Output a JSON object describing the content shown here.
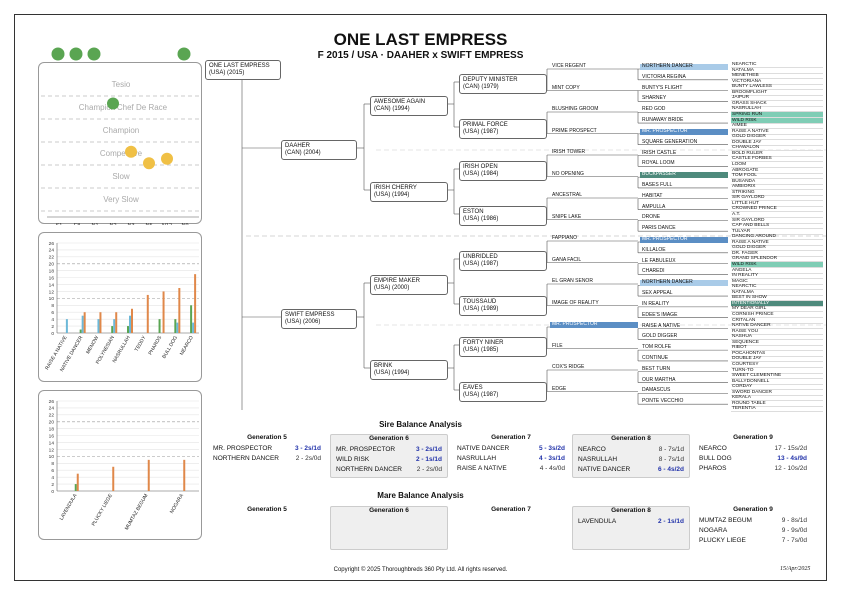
{
  "header": {
    "title": "ONE LAST EMPRESS",
    "subtitle": "F 2015 / USA · DAAHER x SWIFT EMPRESS"
  },
  "rating_panel": {
    "levels": [
      "Tesio",
      "Champion",
      "Chef De Race",
      "Champion",
      "Competitive",
      "Slow",
      "Very Slow"
    ],
    "columns": [
      "S1",
      "E8",
      "N1",
      "N2",
      "N3",
      "N5",
      "N12",
      "N9"
    ],
    "top_dots": [
      {
        "col": 0,
        "color": "#5aa552"
      },
      {
        "col": 1,
        "color": "#5aa552"
      },
      {
        "col": 2,
        "color": "#5aa552"
      },
      {
        "col": 7,
        "color": "#5aa552"
      }
    ],
    "dots": [
      {
        "col": 3,
        "level": 1.5,
        "color": "#5aa552"
      },
      {
        "col": 4,
        "level": 3.6,
        "color": "#f0c045"
      },
      {
        "col": 5,
        "level": 4.1,
        "color": "#f0c045"
      },
      {
        "col": 6,
        "level": 3.9,
        "color": "#f0c045"
      }
    ]
  },
  "chart_data": [
    {
      "type": "bar",
      "categories": [
        "RAISE A NATIVE",
        "NATIVE DANCER",
        "MENOW",
        "POLYNESIAN",
        "NASRULLAH",
        "TEDDY",
        "PHAROS",
        "BULL DOG",
        "NEARCO"
      ],
      "ylim": [
        0,
        26
      ],
      "yticks": [
        0,
        2,
        4,
        6,
        8,
        10,
        12,
        14,
        16,
        18,
        20,
        22,
        24,
        26
      ],
      "series": [
        {
          "color": "#5aa552",
          "values": [
            0,
            1,
            0,
            2,
            2,
            0,
            4,
            4,
            8
          ]
        },
        {
          "color": "#6cb8d8",
          "values": [
            4,
            5,
            4,
            4,
            5,
            0,
            0,
            3,
            3
          ]
        },
        {
          "color": "#e0884a",
          "values": [
            0,
            6,
            6,
            6,
            7,
            11,
            12,
            13,
            17
          ]
        }
      ]
    },
    {
      "type": "bar",
      "categories": [
        "LAVENDULA",
        "PLUCKY LIEGE",
        "MUMTAZ BEGUM",
        "NOGARA"
      ],
      "ylim": [
        0,
        26
      ],
      "yticks": [
        0,
        2,
        4,
        6,
        8,
        10,
        12,
        14,
        16,
        18,
        20,
        22,
        24,
        26
      ],
      "series": [
        {
          "color": "#5aa552",
          "values": [
            2,
            0,
            0,
            0
          ]
        },
        {
          "color": "#e0884a",
          "values": [
            5,
            7,
            9,
            9
          ]
        }
      ]
    }
  ],
  "pedigree": {
    "subject": {
      "name": "ONE LAST EMPRESS",
      "info": "(USA) (2015)"
    },
    "g1": [
      {
        "name": "DAAHER",
        "info": "(CAN) (2004)"
      },
      {
        "name": "SWIFT EMPRESS",
        "info": "(USA) (2006)"
      }
    ],
    "g2": [
      {
        "name": "AWESOME AGAIN",
        "info": "(CAN) (1994)"
      },
      {
        "name": "IRISH CHERRY",
        "info": "(USA) (1994)"
      },
      {
        "name": "EMPIRE MAKER",
        "info": "(USA) (2000)"
      },
      {
        "name": "BRINK",
        "info": "(USA) (1994)"
      }
    ],
    "g3": [
      {
        "name": "DEPUTY MINISTER",
        "info": "(CAN) (1979)"
      },
      {
        "name": "PRIMAL FORCE",
        "info": "(USA) (1987)"
      },
      {
        "name": "IRISH OPEN",
        "info": "(USA) (1984)"
      },
      {
        "name": "ESTON",
        "info": "(USA) (1986)"
      },
      {
        "name": "UNBRIDLED",
        "info": "(USA) (1987)"
      },
      {
        "name": "TOUSSAUD",
        "info": "(USA) (1989)"
      },
      {
        "name": "FORTY NINER",
        "info": "(USA) (1985)"
      },
      {
        "name": "EAVES",
        "info": "(USA) (1987)"
      }
    ],
    "g4": [
      "VICE REGENT",
      "MINT COPY",
      "BLUSHING GROOM",
      "PRIME PROSPECT",
      "IRISH TOWER",
      "NO OPENING",
      "ANCESTRAL",
      "SNIPE LAKE",
      "FAPPIANO",
      "GANA FACIL",
      "EL GRAN SENOR",
      "IMAGE OF REALITY",
      "MR. PROSPECTOR",
      "FILE",
      "COX'S RIDGE",
      "EDGE"
    ],
    "g5": [
      "NORTHERN DANCER",
      "VICTORIA REGINA",
      "BUNTY'S FLIGHT",
      "SHARNEY",
      "RED GOD",
      "RUNAWAY BRIDE",
      "MR. PROSPECTOR",
      "SQUARE GENERATION",
      "IRISH CASTLE",
      "ROYAL LOOM",
      "BUCKPASSER",
      "BASES FULL",
      "HABITAT",
      "AMPULLA",
      "DRONE",
      "PARIS DANCE",
      "MR. PROSPECTOR",
      "KILLALOE",
      "LE FABULEUX",
      "CHAREDI",
      "NORTHERN DANCER",
      "SEX APPEAL",
      "IN REALITY",
      "EDEE'S IMAGE",
      "RAISE A NATIVE",
      "GOLD DIGGER",
      "TOM ROLFE",
      "CONTINUE",
      "BEST TURN",
      "OUR MARTHA",
      "DAMASCUS",
      "PONTE VECCHIO"
    ],
    "g5_highlight": [
      "blue",
      "",
      "",
      "",
      "",
      "",
      "dblue",
      "",
      "",
      "",
      "dteal",
      "",
      "",
      "",
      "",
      "",
      "dblue",
      "",
      "",
      "",
      "blue",
      "",
      "",
      "",
      "",
      "",
      "",
      "",
      "",
      "",
      "",
      ""
    ],
    "g4_highlight": [
      "",
      "",
      "",
      "",
      "",
      "",
      "",
      "",
      "",
      "",
      "",
      "",
      "dblue",
      "",
      "",
      ""
    ],
    "g6": [
      "NEARCTIC",
      "NATALMA",
      "MENETHEB",
      "VICTORIANA",
      "BUNTY LAWLESS",
      "BROOMFLIGHT",
      "JAIPUR",
      "GRASS SHACK",
      "NASRULLAH",
      "SPRING RUN",
      "WILD RISK",
      "AIMEE",
      "RAISE A NATIVE",
      "GOLD DIGGER",
      "DOUBLE JAY",
      "CHAWALON",
      "BOLD RULER",
      "CASTLE FORBES",
      "LOOM",
      "ABROGATE",
      "TOM FOOL",
      "BUSANDA",
      "AMBIORIX",
      "STRIKING",
      "SIR GAYLORD",
      "LITTLE HUT",
      "CROWNED PRINCE",
      "A.T.",
      "SIR GAYLORD",
      "CAP AND BELLS",
      "TULYAR",
      "DANCING AROUND",
      "RAISE A NATIVE",
      "GOLD DIGGER",
      "DR. FAGER",
      "GRAND SPLENDOR",
      "WILD RISK",
      "ANGELA",
      "IN REALITY",
      "MAGIC",
      "NEARCTIC",
      "NATALMA",
      "BEST IN SHOW",
      "INTENTIONALLY",
      "MY DEAR GIRL",
      "CORNISH PRINCE",
      "CRITALAN",
      "NATIVE DANCER",
      "RAISE YOU",
      "NASHUA",
      "SEQUENCE",
      "RIBOT",
      "POCAHONTAS",
      "DOUBLE JAY",
      "COURTESY",
      "TURN-TO",
      "SWEET CLEMENTINE",
      "BALLYDONNELL",
      "CORDAY",
      "SWORD DANCER",
      "KERALA",
      "ROUND TABLE",
      "TERENTIA"
    ],
    "g6_highlight": {
      "9": "teal",
      "10": "teal",
      "36": "teal",
      "43": "dteal"
    }
  },
  "sire_balance": {
    "title": "Sire Balance Analysis",
    "generations": [
      {
        "label": "Generation 5",
        "shaded": false,
        "rows": [
          {
            "name": "MR. PROSPECTOR",
            "value": "3 - 2s/1d",
            "blue": true
          },
          {
            "name": "NORTHERN DANCER",
            "value": "2 - 2s/0d",
            "blue": false
          }
        ]
      },
      {
        "label": "Generation 6",
        "shaded": true,
        "rows": [
          {
            "name": "MR. PROSPECTOR",
            "value": "3 - 2s/1d",
            "blue": true
          },
          {
            "name": "WILD RISK",
            "value": "2 - 1s/1d",
            "blue": true
          },
          {
            "name": "NORTHERN DANCER",
            "value": "2 - 2s/0d",
            "blue": false
          }
        ]
      },
      {
        "label": "Generation 7",
        "shaded": false,
        "rows": [
          {
            "name": "NATIVE DANCER",
            "value": "5 - 3s/2d",
            "blue": true
          },
          {
            "name": "NASRULLAH",
            "value": "4 - 3s/1d",
            "blue": true
          },
          {
            "name": "RAISE A NATIVE",
            "value": "4 - 4s/0d",
            "blue": false
          }
        ]
      },
      {
        "label": "Generation 8",
        "shaded": true,
        "rows": [
          {
            "name": "NEARCO",
            "value": "8 - 7s/1d",
            "blue": false
          },
          {
            "name": "NASRULLAH",
            "value": "8 - 7s/1d",
            "blue": false
          },
          {
            "name": "NATIVE DANCER",
            "value": "6 - 4s/2d",
            "blue": true
          }
        ]
      },
      {
        "label": "Generation 9",
        "shaded": false,
        "rows": [
          {
            "name": "NEARCO",
            "value": "17 - 15s/2d",
            "blue": false
          },
          {
            "name": "BULL DOG",
            "value": "13 - 4s/9d",
            "blue": true
          },
          {
            "name": "PHAROS",
            "value": "12 - 10s/2d",
            "blue": false
          }
        ]
      }
    ]
  },
  "mare_balance": {
    "title": "Mare Balance Analysis",
    "generations": [
      {
        "label": "Generation 5",
        "shaded": false,
        "rows": []
      },
      {
        "label": "Generation 6",
        "shaded": true,
        "rows": []
      },
      {
        "label": "Generation 7",
        "shaded": false,
        "rows": []
      },
      {
        "label": "Generation 8",
        "shaded": true,
        "rows": [
          {
            "name": "LAVENDULA",
            "value": "2 - 1s/1d",
            "blue": true
          }
        ]
      },
      {
        "label": "Generation 9",
        "shaded": false,
        "rows": [
          {
            "name": "MUMTAZ BEGUM",
            "value": "9 - 8s/1d",
            "blue": false
          },
          {
            "name": "NOGARA",
            "value": "9 - 9s/0d",
            "blue": false
          },
          {
            "name": "PLUCKY LIEGE",
            "value": "7 - 7s/0d",
            "blue": false
          }
        ]
      }
    ]
  },
  "footer": {
    "copyright": "Copyright © 2025 Thoroughbreds 360 Pty Ltd. All rights reserved.",
    "date": "15/Apr/2025"
  }
}
